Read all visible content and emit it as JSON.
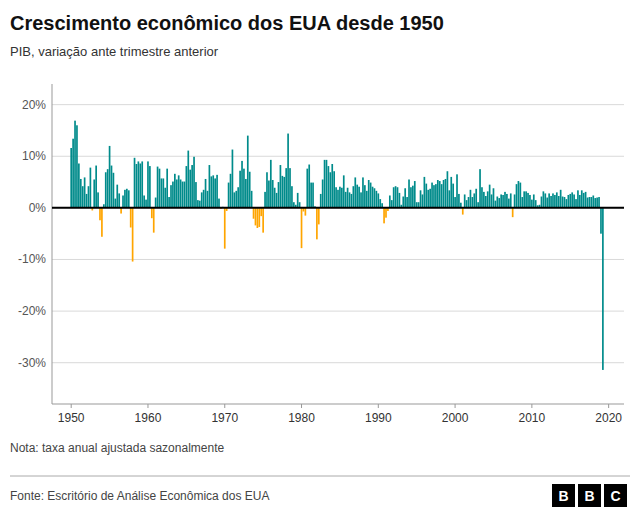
{
  "chart_data": {
    "type": "bar",
    "title": "Crescimento econômico dos EUA desde 1950",
    "subtitle": "PIB, variação ante trimestre anterior",
    "note": "Nota: taxa anual ajustada sazonalmente",
    "source": "Fonte: Escritório de Análise Econômica dos EUA",
    "annotations": [
      "BBC"
    ],
    "x": [
      1950,
      1950.25,
      1950.5,
      1950.75,
      1951,
      1951.25,
      1951.5,
      1951.75,
      1952,
      1952.25,
      1952.5,
      1952.75,
      1953,
      1953.25,
      1953.5,
      1953.75,
      1954,
      1954.25,
      1954.5,
      1954.75,
      1955,
      1955.25,
      1955.5,
      1955.75,
      1956,
      1956.25,
      1956.5,
      1956.75,
      1957,
      1957.25,
      1957.5,
      1957.75,
      1958,
      1958.25,
      1958.5,
      1958.75,
      1959,
      1959.25,
      1959.5,
      1959.75,
      1960,
      1960.25,
      1960.5,
      1960.75,
      1961,
      1961.25,
      1961.5,
      1961.75,
      1962,
      1962.25,
      1962.5,
      1962.75,
      1963,
      1963.25,
      1963.5,
      1963.75,
      1964,
      1964.25,
      1964.5,
      1964.75,
      1965,
      1965.25,
      1965.5,
      1965.75,
      1966,
      1966.25,
      1966.5,
      1966.75,
      1967,
      1967.25,
      1967.5,
      1967.75,
      1968,
      1968.25,
      1968.5,
      1968.75,
      1969,
      1969.25,
      1969.5,
      1969.75,
      1970,
      1970.25,
      1970.5,
      1970.75,
      1971,
      1971.25,
      1971.5,
      1971.75,
      1972,
      1972.25,
      1972.5,
      1972.75,
      1973,
      1973.25,
      1973.5,
      1973.75,
      1974,
      1974.25,
      1974.5,
      1974.75,
      1975,
      1975.25,
      1975.5,
      1975.75,
      1976,
      1976.25,
      1976.5,
      1976.75,
      1977,
      1977.25,
      1977.5,
      1977.75,
      1978,
      1978.25,
      1978.5,
      1978.75,
      1979,
      1979.25,
      1979.5,
      1979.75,
      1980,
      1980.25,
      1980.5,
      1980.75,
      1981,
      1981.25,
      1981.5,
      1981.75,
      1982,
      1982.25,
      1982.5,
      1982.75,
      1983,
      1983.25,
      1983.5,
      1983.75,
      1984,
      1984.25,
      1984.5,
      1984.75,
      1985,
      1985.25,
      1985.5,
      1985.75,
      1986,
      1986.25,
      1986.5,
      1986.75,
      1987,
      1987.25,
      1987.5,
      1987.75,
      1988,
      1988.25,
      1988.5,
      1988.75,
      1989,
      1989.25,
      1989.5,
      1989.75,
      1990,
      1990.25,
      1990.5,
      1990.75,
      1991,
      1991.25,
      1991.5,
      1991.75,
      1992,
      1992.25,
      1992.5,
      1992.75,
      1993,
      1993.25,
      1993.5,
      1993.75,
      1994,
      1994.25,
      1994.5,
      1994.75,
      1995,
      1995.25,
      1995.5,
      1995.75,
      1996,
      1996.25,
      1996.5,
      1996.75,
      1997,
      1997.25,
      1997.5,
      1997.75,
      1998,
      1998.25,
      1998.5,
      1998.75,
      1999,
      1999.25,
      1999.5,
      1999.75,
      2000,
      2000.25,
      2000.5,
      2000.75,
      2001,
      2001.25,
      2001.5,
      2001.75,
      2002,
      2002.25,
      2002.5,
      2002.75,
      2003,
      2003.25,
      2003.5,
      2003.75,
      2004,
      2004.25,
      2004.5,
      2004.75,
      2005,
      2005.25,
      2005.5,
      2005.75,
      2006,
      2006.25,
      2006.5,
      2006.75,
      2007,
      2007.25,
      2007.5,
      2007.75,
      2008,
      2008.25,
      2008.5,
      2008.75,
      2009,
      2009.25,
      2009.5,
      2009.75,
      2010,
      2010.25,
      2010.5,
      2010.75,
      2011,
      2011.25,
      2011.5,
      2011.75,
      2012,
      2012.25,
      2012.5,
      2012.75,
      2013,
      2013.25,
      2013.5,
      2013.75,
      2014,
      2014.25,
      2014.5,
      2014.75,
      2015,
      2015.25,
      2015.5,
      2015.75,
      2016,
      2016.25,
      2016.5,
      2016.75,
      2017,
      2017.25,
      2017.5,
      2017.75,
      2018,
      2018.25,
      2018.5,
      2018.75,
      2019,
      2019.25
    ],
    "values": [
      11.6,
      13.4,
      16.9,
      16.0,
      8.6,
      5.6,
      4.2,
      5.9,
      2.7,
      4.2,
      7.8,
      -0.5,
      5.5,
      8.2,
      3.0,
      -2.4,
      -5.6,
      0.7,
      6.9,
      7.5,
      12.0,
      8.2,
      6.8,
      1.8,
      4.5,
      2.8,
      -1.1,
      2.4,
      3.5,
      3.7,
      3.4,
      -3.8,
      -10.4,
      9.7,
      8.5,
      9.0,
      8.6,
      9.0,
      2.4,
      1.6,
      9.0,
      8.1,
      -2.0,
      -4.8,
      2.0,
      8.0,
      7.6,
      5.7,
      5.7,
      3.9,
      7.6,
      2.1,
      4.4,
      5.1,
      6.6,
      5.5,
      6.3,
      5.5,
      5.1,
      5.1,
      8.1,
      11.1,
      7.4,
      8.3,
      9.9,
      5.0,
      1.5,
      1.4,
      3.0,
      3.5,
      5.6,
      3.3,
      8.3,
      6.1,
      6.3,
      5.7,
      6.4,
      1.8,
      -0.2,
      0.2,
      -7.9,
      -0.6,
      4.9,
      6.6,
      11.3,
      3.0,
      3.3,
      4.0,
      7.2,
      9.1,
      7.6,
      5.6,
      14.0,
      7.0,
      3.3,
      -2.1,
      -3.4,
      -3.9,
      -3.7,
      -1.6,
      -4.8,
      3.1,
      6.9,
      5.3,
      9.3,
      5.4,
      3.9,
      2.9,
      5.0,
      8.3,
      6.2,
      6.0,
      7.7,
      14.4,
      7.7,
      4.2,
      1.1,
      0.6,
      2.9,
      1.1,
      -7.8,
      -0.7,
      -1.5,
      7.6,
      8.4,
      4.9,
      4.9,
      0.3,
      -6.1,
      -3.2,
      2.7,
      5.5,
      9.3,
      9.3,
      8.1,
      6.9,
      8.5,
      7.1,
      4.0,
      3.5,
      4.1,
      3.9,
      6.3,
      3.1,
      3.9,
      3.0,
      2.7,
      4.2,
      5.9,
      4.5,
      4.1,
      3.0,
      5.9,
      4.4,
      3.3,
      5.4,
      4.9,
      4.1,
      3.8,
      3.3,
      2.8,
      1.7,
      0.9,
      -3.0,
      -1.9,
      -0.6,
      2.4,
      1.5,
      4.0,
      4.2,
      4.0,
      2.9,
      0.6,
      2.2,
      3.8,
      2.1,
      5.5,
      4.0,
      4.3,
      5.2,
      1.1,
      1.1,
      3.4,
      2.6,
      6.0,
      4.7,
      3.5,
      3.7,
      4.9,
      4.4,
      4.6,
      5.4,
      5.2,
      4.6,
      5.4,
      5.6,
      7.1,
      3.4,
      6.0,
      4.7,
      2.1,
      6.5,
      2.7,
      1.0,
      -1.3,
      2.6,
      1.5,
      2.1,
      3.5,
      2.1,
      2.8,
      3.7,
      1.1,
      7.5,
      4.0,
      3.1,
      2.3,
      3.2,
      4.5,
      2.6,
      3.8,
      1.4,
      2.2,
      1.9,
      2.6,
      2.5,
      3.1,
      2.7,
      1.8,
      2.8,
      -1.8,
      2.6,
      4.6,
      5.2,
      4.9,
      2.1,
      3.2,
      3.2,
      2.9,
      2.5,
      1.6,
      2.6,
      1.5,
      0.5,
      0.6,
      2.2,
      3.2,
      2.8,
      2.0,
      2.8,
      2.3,
      2.8,
      2.5,
      3.0,
      2.3,
      3.5,
      2.2,
      2.1,
      1.7,
      2.5,
      2.7,
      3.0,
      2.6,
      1.7,
      3.4,
      2.5,
      3.4,
      2.9,
      3.1,
      2.0,
      2.1,
      2.1,
      2.4,
      1.9,
      2.0,
      2.1,
      -5.0,
      -31.4
    ],
    "colors": [
      "#008B8B",
      "#008B8B",
      "#008B8B",
      "#008B8B",
      "#008B8B",
      "#008B8B",
      "#008B8B",
      "#008B8B",
      "#008B8B",
      "#008B8B",
      "#008B8B",
      "#FFA500",
      "#008B8B",
      "#008B8B",
      "#008B8B",
      "#FFA500",
      "#FFA500",
      "#008B8B",
      "#008B8B",
      "#008B8B",
      "#008B8B",
      "#008B8B",
      "#008B8B",
      "#008B8B",
      "#008B8B",
      "#008B8B",
      "#FFA500",
      "#008B8B",
      "#008B8B",
      "#008B8B",
      "#008B8B",
      "#FFA500",
      "#FFA500",
      "#008B8B",
      "#008B8B",
      "#008B8B",
      "#008B8B",
      "#008B8B",
      "#008B8B",
      "#008B8B",
      "#008B8B",
      "#008B8B",
      "#FFA500",
      "#FFA500",
      "#008B8B",
      "#008B8B",
      "#008B8B",
      "#008B8B",
      "#008B8B",
      "#008B8B",
      "#008B8B",
      "#008B8B",
      "#008B8B",
      "#008B8B",
      "#008B8B",
      "#008B8B",
      "#008B8B",
      "#008B8B",
      "#008B8B",
      "#008B8B",
      "#008B8B",
      "#008B8B",
      "#008B8B",
      "#008B8B",
      "#008B8B",
      "#008B8B",
      "#008B8B",
      "#008B8B",
      "#008B8B",
      "#008B8B",
      "#008B8B",
      "#008B8B",
      "#008B8B",
      "#008B8B",
      "#008B8B",
      "#008B8B",
      "#008B8B",
      "#008B8B",
      "#FFA500",
      "#008B8B",
      "#FFA500",
      "#FFA500",
      "#008B8B",
      "#008B8B",
      "#008B8B",
      "#008B8B",
      "#008B8B",
      "#008B8B",
      "#008B8B",
      "#008B8B",
      "#008B8B",
      "#008B8B",
      "#008B8B",
      "#008B8B",
      "#008B8B",
      "#FFA500",
      "#FFA500",
      "#FFA500",
      "#FFA500",
      "#FFA500",
      "#FFA500",
      "#008B8B",
      "#008B8B",
      "#008B8B",
      "#008B8B",
      "#008B8B",
      "#008B8B",
      "#008B8B",
      "#008B8B",
      "#008B8B",
      "#008B8B",
      "#008B8B",
      "#008B8B",
      "#008B8B",
      "#008B8B",
      "#008B8B",
      "#008B8B",
      "#008B8B",
      "#008B8B",
      "#008B8B",
      "#FFA500",
      "#FFA500",
      "#FFA500",
      "#008B8B",
      "#008B8B",
      "#008B8B",
      "#008B8B",
      "#008B8B",
      "#FFA500",
      "#FFA500",
      "#008B8B",
      "#008B8B",
      "#008B8B",
      "#008B8B",
      "#008B8B",
      "#008B8B",
      "#008B8B",
      "#008B8B",
      "#008B8B",
      "#008B8B",
      "#008B8B",
      "#008B8B",
      "#008B8B",
      "#008B8B",
      "#008B8B",
      "#008B8B",
      "#008B8B",
      "#008B8B",
      "#008B8B",
      "#008B8B",
      "#008B8B",
      "#008B8B",
      "#008B8B",
      "#008B8B",
      "#008B8B",
      "#008B8B",
      "#008B8B",
      "#008B8B",
      "#008B8B",
      "#008B8B",
      "#008B8B",
      "#008B8B",
      "#008B8B",
      "#FFA500",
      "#FFA500",
      "#FFA500",
      "#008B8B",
      "#008B8B",
      "#008B8B",
      "#008B8B",
      "#008B8B",
      "#008B8B",
      "#008B8B",
      "#008B8B",
      "#008B8B",
      "#008B8B",
      "#008B8B",
      "#008B8B",
      "#008B8B",
      "#008B8B",
      "#008B8B",
      "#008B8B",
      "#008B8B",
      "#008B8B",
      "#008B8B",
      "#008B8B",
      "#008B8B",
      "#008B8B",
      "#008B8B",
      "#008B8B",
      "#008B8B",
      "#008B8B",
      "#008B8B",
      "#008B8B",
      "#008B8B",
      "#008B8B",
      "#008B8B",
      "#008B8B",
      "#008B8B",
      "#008B8B",
      "#008B8B",
      "#008B8B",
      "#008B8B",
      "#008B8B",
      "#FFA500",
      "#008B8B",
      "#008B8B",
      "#008B8B",
      "#008B8B",
      "#008B8B",
      "#008B8B",
      "#008B8B",
      "#008B8B",
      "#008B8B",
      "#008B8B",
      "#008B8B",
      "#008B8B",
      "#008B8B",
      "#008B8B",
      "#008B8B",
      "#008B8B",
      "#008B8B",
      "#008B8B",
      "#008B8B",
      "#008B8B",
      "#008B8B",
      "#008B8B",
      "#008B8B",
      "#008B8B",
      "#008B8B",
      "#FFA500",
      "#008B8B",
      "#008B8B",
      "#008B8B",
      "#008B8B",
      "#008B8B",
      "#008B8B",
      "#008B8B",
      "#008B8B",
      "#008B8B",
      "#008B8B",
      "#008B8B",
      "#008B8B",
      "#008B8B",
      "#008B8B",
      "#008B8B",
      "#008B8B",
      "#008B8B",
      "#008B8B",
      "#008B8B",
      "#008B8B",
      "#008B8B",
      "#008B8B",
      "#008B8B",
      "#008B8B",
      "#008B8B",
      "#008B8B",
      "#008B8B",
      "#008B8B",
      "#008B8B",
      "#008B8B",
      "#008B8B",
      "#008B8B",
      "#008B8B",
      "#008B8B",
      "#008B8B",
      "#008B8B",
      "#008B8B",
      "#008B8B",
      "#008B8B",
      "#008B8B",
      "#008B8B",
      "#008B8B",
      "#008B8B",
      "#008B8B",
      "#008B8B",
      "#008B8B",
      "#008B8B",
      "#008B8B",
      "#008B8B",
      "#FFA500",
      "#FFA500"
    ],
    "xlim": [
      1947.5,
      2022
    ],
    "xticks": [
      1950,
      1960,
      1970,
      1980,
      1990,
      2000,
      2010,
      2020
    ],
    "ylim": [
      -38,
      24
    ],
    "yticks": [
      {
        "value": 20,
        "label": "20%"
      },
      {
        "value": 10,
        "label": "10%"
      },
      {
        "value": 0,
        "label": "0%"
      },
      {
        "value": -10,
        "label": "-10%"
      },
      {
        "value": -20,
        "label": "-20%"
      },
      {
        "value": -30,
        "label": "-30%"
      }
    ],
    "grid": true
  }
}
